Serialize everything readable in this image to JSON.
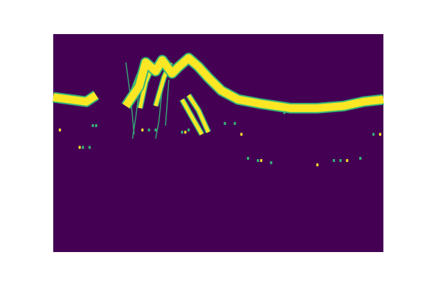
{
  "chart_data": {
    "type": "heatmap",
    "title": "",
    "xlabel": "",
    "ylabel": "",
    "axes_visible": false,
    "colormap": "viridis",
    "background_color": "#440154",
    "foreground_color": "#fde725",
    "edge_color": "#35b779",
    "x_range": [
      0,
      1
    ],
    "y_range": [
      0,
      1
    ],
    "main_track": {
      "name": "",
      "points": [
        [
          0.0,
          0.29
        ],
        [
          0.05,
          0.3
        ],
        [
          0.1,
          0.31
        ],
        [
          0.13,
          0.28
        ],
        [
          0.22,
          0.33
        ],
        [
          0.26,
          0.24
        ],
        [
          0.28,
          0.13
        ],
        [
          0.31,
          0.17
        ],
        [
          0.33,
          0.12
        ],
        [
          0.36,
          0.18
        ],
        [
          0.38,
          0.15
        ],
        [
          0.41,
          0.11
        ],
        [
          0.44,
          0.15
        ],
        [
          0.47,
          0.2
        ],
        [
          0.51,
          0.26
        ],
        [
          0.56,
          0.3
        ],
        [
          0.63,
          0.32
        ],
        [
          0.72,
          0.34
        ],
        [
          0.8,
          0.34
        ],
        [
          0.88,
          0.33
        ],
        [
          0.94,
          0.31
        ],
        [
          1.0,
          0.3
        ]
      ],
      "gaps": [
        [
          0.134,
          0.22
        ]
      ]
    },
    "secondary_tracks": [
      {
        "points": [
          [
            0.225,
            0.33
          ],
          [
            0.26,
            0.19
          ],
          [
            0.283,
            0.13
          ]
        ]
      },
      {
        "points": [
          [
            0.263,
            0.34
          ],
          [
            0.28,
            0.22
          ],
          [
            0.3,
            0.15
          ]
        ]
      },
      {
        "points": [
          [
            0.31,
            0.33
          ],
          [
            0.335,
            0.2
          ],
          [
            0.355,
            0.13
          ]
        ]
      },
      {
        "points": [
          [
            0.41,
            0.28
          ],
          [
            0.44,
            0.35
          ],
          [
            0.47,
            0.45
          ]
        ]
      },
      {
        "points": [
          [
            0.39,
            0.3
          ],
          [
            0.42,
            0.38
          ],
          [
            0.45,
            0.46
          ]
        ]
      }
    ],
    "faint_streaks": [
      {
        "points": [
          [
            0.26,
            0.26
          ],
          [
            0.25,
            0.38
          ],
          [
            0.24,
            0.48
          ]
        ]
      },
      {
        "points": [
          [
            0.33,
            0.25
          ],
          [
            0.32,
            0.4
          ],
          [
            0.31,
            0.48
          ]
        ]
      },
      {
        "points": [
          [
            0.35,
            0.21
          ],
          [
            0.345,
            0.32
          ],
          [
            0.34,
            0.42
          ]
        ]
      },
      {
        "points": [
          [
            0.22,
            0.13
          ],
          [
            0.235,
            0.3
          ],
          [
            0.245,
            0.46
          ]
        ]
      }
    ],
    "speckles": [
      [
        0.02,
        0.44
      ],
      [
        0.12,
        0.42
      ],
      [
        0.13,
        0.42
      ],
      [
        0.08,
        0.52
      ],
      [
        0.09,
        0.52
      ],
      [
        0.11,
        0.52
      ],
      [
        0.27,
        0.44
      ],
      [
        0.31,
        0.44
      ],
      [
        0.39,
        0.45
      ],
      [
        0.4,
        0.45
      ],
      [
        0.41,
        0.44
      ],
      [
        0.52,
        0.41
      ],
      [
        0.57,
        0.46
      ],
      [
        0.59,
        0.57
      ],
      [
        0.62,
        0.58
      ],
      [
        0.63,
        0.58
      ],
      [
        0.66,
        0.59
      ],
      [
        0.7,
        0.36
      ],
      [
        0.8,
        0.6
      ],
      [
        0.85,
        0.58
      ],
      [
        0.87,
        0.58
      ],
      [
        0.89,
        0.58
      ],
      [
        0.93,
        0.57
      ],
      [
        0.97,
        0.46
      ],
      [
        0.99,
        0.46
      ],
      [
        0.55,
        0.41
      ],
      [
        0.29,
        0.44
      ]
    ]
  }
}
